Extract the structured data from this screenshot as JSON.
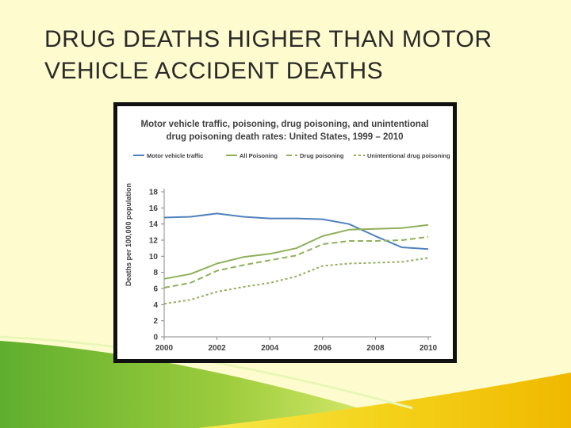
{
  "slide": {
    "title_line1": "DRUG DEATHS HIGHER THAN MOTOR",
    "title_line2": "VEHICLE ACCIDENT DEATHS"
  },
  "chart_data": {
    "type": "line",
    "title_line1": "Motor vehicle traffic, poisoning, drug poisoning, and unintentional",
    "title_line2": "drug poisoning death rates: United States, 1999 – 2010",
    "ylabel": "Deaths per 100,000 population",
    "xlabel": "",
    "xlim": [
      2000,
      2010
    ],
    "ylim": [
      0,
      18
    ],
    "x_ticks": [
      2000,
      2002,
      2004,
      2006,
      2008,
      2010
    ],
    "y_ticks": [
      0,
      2,
      4,
      6,
      8,
      10,
      12,
      14,
      16,
      18
    ],
    "legend_position": "top",
    "x": [
      2000,
      2001,
      2002,
      2003,
      2004,
      2005,
      2006,
      2007,
      2008,
      2009,
      2010
    ],
    "series": [
      {
        "name": "Motor vehicle traffic",
        "color": "#4f81bd",
        "dash": "solid",
        "values": [
          14.8,
          14.9,
          15.3,
          14.9,
          14.7,
          14.7,
          14.6,
          14.0,
          12.5,
          11.1,
          10.9
        ]
      },
      {
        "name": "All Poisoning",
        "color": "#8fb05a",
        "dash": "solid",
        "values": [
          7.2,
          7.8,
          9.1,
          9.9,
          10.3,
          11.0,
          12.5,
          13.3,
          13.4,
          13.5,
          13.9
        ]
      },
      {
        "name": "Drug poisoning",
        "color": "#8fb05a",
        "dash": "long",
        "values": [
          6.1,
          6.7,
          8.2,
          8.9,
          9.5,
          10.1,
          11.5,
          11.9,
          11.9,
          12.0,
          12.4
        ]
      },
      {
        "name": "Unintentional drug poisoning",
        "color": "#8fb05a",
        "dash": "short",
        "values": [
          4.1,
          4.6,
          5.6,
          6.2,
          6.7,
          7.5,
          8.8,
          9.1,
          9.2,
          9.3,
          9.8
        ]
      }
    ]
  }
}
